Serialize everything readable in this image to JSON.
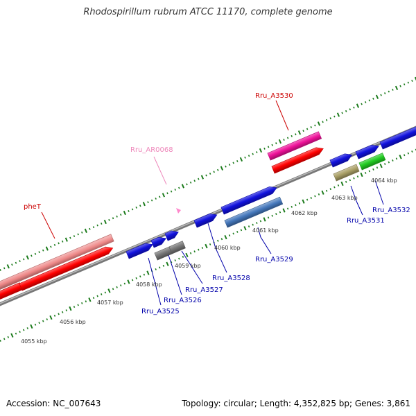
{
  "title": "Rhodospirillum rubrum ATCC 11170, complete genome",
  "footer": {
    "accession": "Accession: NC_007643",
    "stats": "Topology: circular; Length: 4,352,825 bp; Genes: 3,861"
  },
  "colors": {
    "backbone": "#777777",
    "tick": "#1a7a1a",
    "label_blue": "#0000aa",
    "label_red": "#cc0000",
    "label_pink": "#ee88bb",
    "feature_red": "#ff0000",
    "feature_lightred": "#ee8888",
    "feature_magenta": "#ee1199",
    "feature_blue": "#1111dd",
    "feature_steelblue": "#4477bb",
    "feature_gray": "#777777",
    "feature_olive": "#aaa066",
    "feature_green": "#22cc22"
  },
  "kbp_labels": [
    "4055 kbp",
    "4056 kbp",
    "4057 kbp",
    "4058 kbp",
    "4059 kbp",
    "4060 kbp",
    "4061 kbp",
    "4062 kbp",
    "4063 kbp",
    "4064 kbp"
  ],
  "gene_labels": {
    "pheT": "pheT",
    "Rru_AR0068": "Rru_AR0068",
    "Rru_A3530": "Rru_A3530",
    "Rru_A3525": "Rru_A3525",
    "Rru_A3526": "Rru_A3526",
    "Rru_A3527": "Rru_A3527",
    "Rru_A3528": "Rru_A3528",
    "Rru_A3529": "Rru_A3529",
    "Rru_A3531": "Rru_A3531",
    "Rru_A3532": "Rru_A3532"
  }
}
